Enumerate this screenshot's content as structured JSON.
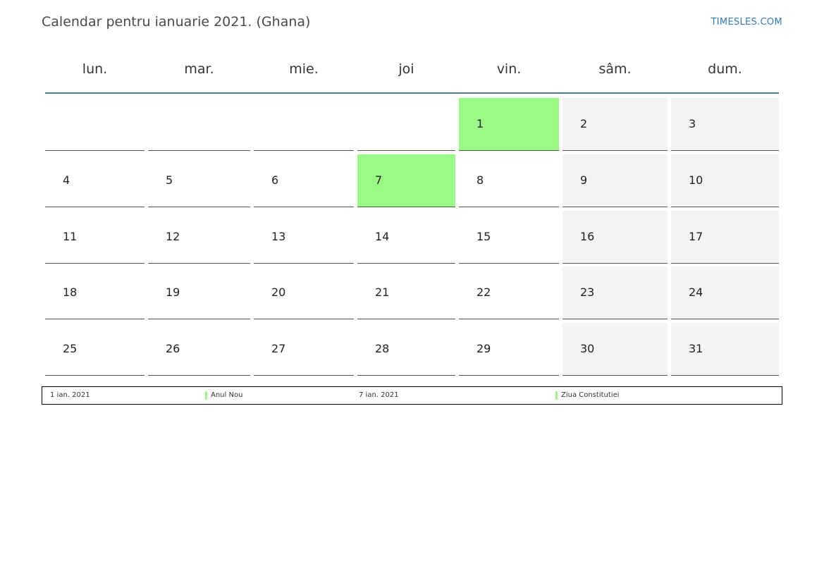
{
  "header": {
    "title": "Calendar pentru ianuarie 2021. (Ghana)",
    "brand": "TIMESLES.COM"
  },
  "weekdays": [
    "lun.",
    "mar.",
    "mie.",
    "joi",
    "vin.",
    "sâm.",
    "dum."
  ],
  "colors": {
    "holiday": "#99fa85",
    "weekend": "#f3f3f3",
    "header_rule": "#5577a0",
    "brand": "#2f7ac4"
  },
  "weeks": [
    [
      "",
      "",
      "",
      "",
      "1",
      "2",
      "3"
    ],
    [
      "4",
      "5",
      "6",
      "7",
      "8",
      "9",
      "10"
    ],
    [
      "11",
      "12",
      "13",
      "14",
      "15",
      "16",
      "17"
    ],
    [
      "18",
      "19",
      "20",
      "21",
      "22",
      "23",
      "24"
    ],
    [
      "25",
      "26",
      "27",
      "28",
      "29",
      "30",
      "31"
    ]
  ],
  "holiday_days": [
    "1",
    "7"
  ],
  "legend": [
    {
      "date": "1 ian. 2021",
      "name": "Anul Nou"
    },
    {
      "date": "7 ian. 2021",
      "name": "Ziua Constitutiei"
    }
  ]
}
